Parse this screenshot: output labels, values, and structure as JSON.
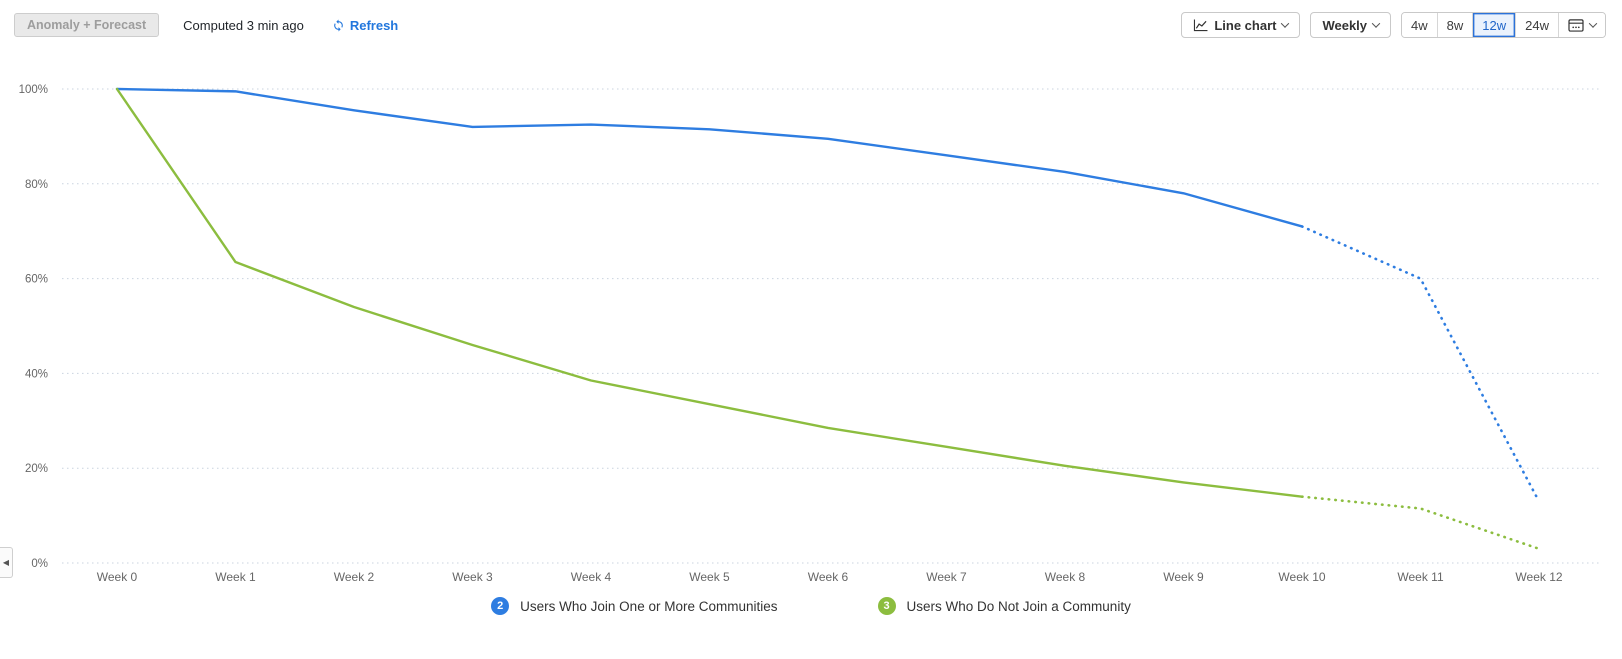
{
  "toolbar": {
    "anomaly_button_label": "Anomaly + Forecast",
    "computed_text": "Computed 3 min ago",
    "refresh_label": "Refresh",
    "chart_type_label": "Line chart",
    "granularity_label": "Weekly",
    "ranges": [
      "4w",
      "8w",
      "12w",
      "24w"
    ],
    "active_range": "12w"
  },
  "colors": {
    "link_blue": "#2277dd",
    "active_range_blue": "#2166c9",
    "gridline": "#c9d3df",
    "axis_text": "#666666"
  },
  "chart_data": {
    "type": "line",
    "title": "",
    "xlabel": "",
    "ylabel": "",
    "x": [
      "Week 0",
      "Week 1",
      "Week 2",
      "Week 3",
      "Week 4",
      "Week 5",
      "Week 6",
      "Week 7",
      "Week 8",
      "Week 9",
      "Week 10",
      "Week 11",
      "Week 12"
    ],
    "y_ticks": [
      "100%",
      "80%",
      "60%",
      "40%",
      "20%",
      "0%"
    ],
    "y_tick_values": [
      100,
      80,
      60,
      40,
      20,
      0
    ],
    "ylim": [
      0,
      100
    ],
    "grid": "horizontal-dotted",
    "legend_position": "bottom-center",
    "forecast_from_index": 10,
    "forecast_style": "dotted",
    "series": [
      {
        "badge": "2",
        "name": "Users Who Join One or More Communities",
        "color": "#2e7de1",
        "values": [
          100,
          99.5,
          95.5,
          92,
          92.5,
          91.5,
          89.5,
          86,
          82.5,
          78,
          71,
          60,
          13
        ]
      },
      {
        "badge": "3",
        "name": "Users Who Do Not Join a Community",
        "color": "#8cbd3f",
        "values": [
          100,
          63.5,
          54,
          46,
          38.5,
          33.5,
          28.5,
          24.5,
          20.5,
          17,
          14,
          11.5,
          3
        ]
      }
    ]
  },
  "side_panel_toggle": {
    "icon_glyph": "◀"
  }
}
